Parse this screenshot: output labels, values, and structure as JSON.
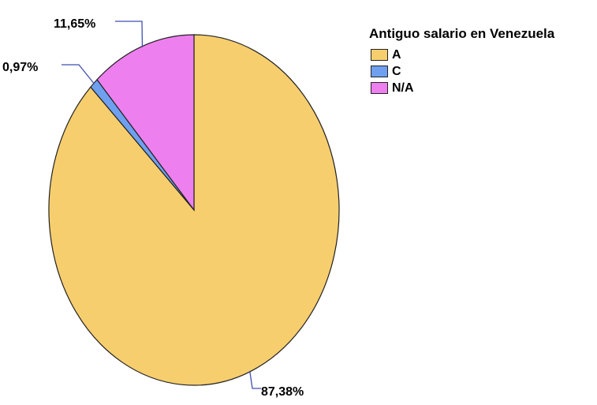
{
  "chart_data": {
    "type": "pie",
    "title": "",
    "legend": {
      "title": "Antiguo salario en Venezuela",
      "placement": "top-right"
    },
    "slices": [
      {
        "label": "A",
        "value": 87.38,
        "value_label": "87,38%",
        "color": "#F7CE6E"
      },
      {
        "label": "C",
        "value": 0.97,
        "value_label": "0,97%",
        "color": "#6FA0F0"
      },
      {
        "label": "N/A",
        "value": 11.65,
        "value_label": "11,65%",
        "color": "#EE7FEE"
      }
    ]
  },
  "colors": {
    "outline": "#222222",
    "leader_line": "#3F4FB0"
  }
}
